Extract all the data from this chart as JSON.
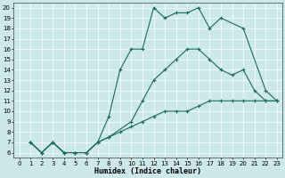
{
  "xlabel": "Humidex (Indice chaleur)",
  "bg_color": "#cce8e8",
  "line_color": "#1a6b60",
  "xlim": [
    -0.5,
    23.5
  ],
  "ylim": [
    5.5,
    20.5
  ],
  "xticks": [
    0,
    1,
    2,
    3,
    4,
    5,
    6,
    7,
    8,
    9,
    10,
    11,
    12,
    13,
    14,
    15,
    16,
    17,
    18,
    19,
    20,
    21,
    22,
    23
  ],
  "yticks": [
    6,
    7,
    8,
    9,
    10,
    11,
    12,
    13,
    14,
    15,
    16,
    17,
    18,
    19,
    20
  ],
  "line1_x": [
    1,
    2,
    3,
    4,
    5,
    6,
    7,
    8,
    9,
    10,
    11,
    12,
    13,
    14,
    15,
    16,
    17,
    18,
    20,
    22,
    23
  ],
  "line1_y": [
    7,
    6,
    7,
    6,
    6,
    6,
    7,
    9.5,
    14,
    16,
    16,
    20,
    19,
    19.5,
    19.5,
    20,
    18,
    19,
    18,
    12,
    11
  ],
  "line2_x": [
    1,
    2,
    3,
    4,
    5,
    6,
    7,
    8,
    10,
    11,
    12,
    13,
    14,
    15,
    16,
    17,
    18,
    19,
    20,
    21,
    22,
    23
  ],
  "line2_y": [
    7,
    6,
    7,
    6,
    6,
    6,
    7,
    7.5,
    9,
    11,
    13,
    14,
    15,
    16,
    16,
    15,
    14,
    13.5,
    14,
    12,
    11,
    11
  ],
  "line3_x": [
    1,
    2,
    3,
    4,
    5,
    6,
    7,
    8,
    9,
    10,
    11,
    12,
    13,
    14,
    15,
    16,
    17,
    18,
    19,
    20,
    21,
    22,
    23
  ],
  "line3_y": [
    7,
    6,
    7,
    6,
    6,
    6,
    7,
    7.5,
    8,
    8.5,
    9,
    9.5,
    10,
    10,
    10,
    10.5,
    11,
    11,
    11,
    11,
    11,
    11,
    11
  ]
}
